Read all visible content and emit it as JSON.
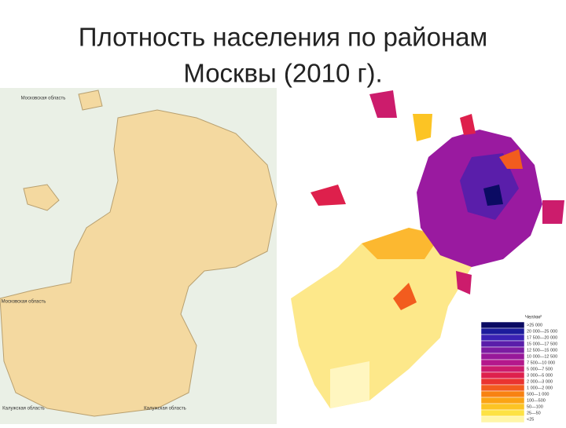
{
  "title_line1": "Плотность населения по районам",
  "title_line2": "Москвы (2010 г).",
  "left_map": {
    "labels": [
      "Московская область",
      "Московская область",
      "Калужская область",
      "Калужская область"
    ]
  },
  "legend": {
    "title": "Чел/км²",
    "items": [
      {
        "label": ">25 000",
        "color": "#0b0b63"
      },
      {
        "label": "20 000—25 000",
        "color": "#1c1c9c"
      },
      {
        "label": "17 500—20 000",
        "color": "#3a22b4"
      },
      {
        "label": "15 000—17 500",
        "color": "#5a1eaa"
      },
      {
        "label": "12 500—15 000",
        "color": "#7c1ca2"
      },
      {
        "label": "10 000—12 500",
        "color": "#98189a"
      },
      {
        "label": "7 500—10 000",
        "color": "#b4188c"
      },
      {
        "label": "5 000—7 500",
        "color": "#cc1c6c"
      },
      {
        "label": "3 000—5 000",
        "color": "#de204c"
      },
      {
        "label": "2 000—3 000",
        "color": "#ea3430"
      },
      {
        "label": "1 000—2 000",
        "color": "#f25c1e"
      },
      {
        "label": "500—1 000",
        "color": "#f88212"
      },
      {
        "label": "100—500",
        "color": "#fba414"
      },
      {
        "label": "50—100",
        "color": "#fcc424"
      },
      {
        "label": "25—50",
        "color": "#fde244"
      },
      {
        "label": "<25",
        "color": "#fff6a8"
      }
    ]
  }
}
